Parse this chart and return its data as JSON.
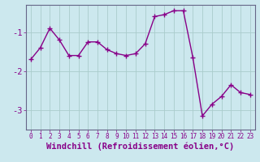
{
  "x": [
    0,
    1,
    2,
    3,
    4,
    5,
    6,
    7,
    8,
    9,
    10,
    11,
    12,
    13,
    14,
    15,
    16,
    17,
    18,
    19,
    20,
    21,
    22,
    23
  ],
  "y": [
    -1.7,
    -1.4,
    -0.9,
    -1.2,
    -1.6,
    -1.6,
    -1.25,
    -1.25,
    -1.45,
    -1.55,
    -1.6,
    -1.55,
    -1.3,
    -0.6,
    -0.55,
    -0.45,
    -0.45,
    -1.65,
    -3.15,
    -2.85,
    -2.65,
    -2.35,
    -2.55,
    -2.6
  ],
  "line_color": "#880088",
  "marker": "+",
  "marker_size": 4,
  "marker_linewidth": 1.0,
  "line_width": 1.0,
  "bg_color": "#cce8ee",
  "grid_color": "#aacccc",
  "xlabel": "Windchill (Refroidissement éolien,°C)",
  "ytick_labels": [
    "-1",
    "-2",
    "-3"
  ],
  "ytick_values": [
    -1,
    -2,
    -3
  ],
  "ylim": [
    -3.5,
    -0.3
  ],
  "xlim": [
    -0.5,
    23.5
  ],
  "xticks": [
    0,
    1,
    2,
    3,
    4,
    5,
    6,
    7,
    8,
    9,
    10,
    11,
    12,
    13,
    14,
    15,
    16,
    17,
    18,
    19,
    20,
    21,
    22,
    23
  ],
  "tick_color": "#880088",
  "xlabel_color": "#880088",
  "xlabel_fontsize": 7.5,
  "xtick_fontsize": 5.5,
  "ytick_fontsize": 7.5,
  "spine_color": "#666688"
}
